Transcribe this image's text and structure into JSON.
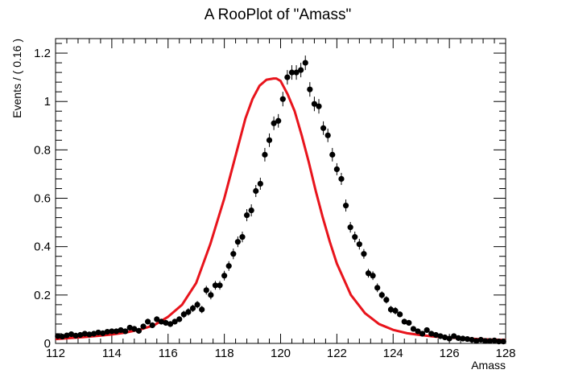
{
  "chart_data": {
    "type": "scatter",
    "title": "A RooPlot of \"Amass\"",
    "xlabel": "Amass",
    "ylabel": "Events / ( 0.16 )",
    "xlim": [
      112,
      128
    ],
    "ylim": [
      0,
      1.26
    ],
    "x_ticks": [
      112,
      114,
      116,
      118,
      120,
      122,
      124,
      126,
      128
    ],
    "x_tick_labels": [
      "112",
      "114",
      "116",
      "118",
      "120",
      "122",
      "124",
      "126",
      "128"
    ],
    "y_ticks": [
      0,
      0.2,
      0.4,
      0.6,
      0.8,
      1,
      1.2
    ],
    "y_tick_labels": [
      "0",
      "0.2",
      "0.4",
      "0.6",
      "0.8",
      "1",
      "1.2"
    ],
    "grid": false,
    "legend": "none",
    "colors": {
      "data": "#000000",
      "fit": "#e8141c"
    },
    "series": [
      {
        "kind": "points-with-errors",
        "x": [
          112.08,
          112.24,
          112.4,
          112.56,
          112.72,
          112.88,
          113.04,
          113.2,
          113.36,
          113.52,
          113.68,
          113.84,
          114.0,
          114.16,
          114.32,
          114.48,
          114.64,
          114.8,
          114.96,
          115.12,
          115.28,
          115.44,
          115.6,
          115.76,
          115.92,
          116.08,
          116.24,
          116.4,
          116.56,
          116.72,
          116.88,
          117.04,
          117.2,
          117.36,
          117.52,
          117.68,
          117.84,
          118.0,
          118.16,
          118.32,
          118.48,
          118.64,
          118.8,
          118.96,
          119.12,
          119.28,
          119.44,
          119.6,
          119.76,
          119.92,
          120.08,
          120.24,
          120.4,
          120.56,
          120.72,
          120.88,
          121.04,
          121.2,
          121.36,
          121.52,
          121.68,
          121.84,
          122.0,
          122.16,
          122.32,
          122.48,
          122.64,
          122.8,
          122.96,
          123.12,
          123.28,
          123.44,
          123.6,
          123.76,
          123.92,
          124.08,
          124.24,
          124.4,
          124.56,
          124.72,
          124.88,
          125.04,
          125.2,
          125.36,
          125.52,
          125.68,
          125.84,
          126.0,
          126.16,
          126.32,
          126.48,
          126.64,
          126.8,
          126.96,
          127.12,
          127.28,
          127.44,
          127.6,
          127.76,
          127.92
        ],
        "y": [
          0.03,
          0.028,
          0.033,
          0.038,
          0.032,
          0.035,
          0.04,
          0.037,
          0.04,
          0.045,
          0.042,
          0.048,
          0.05,
          0.05,
          0.055,
          0.05,
          0.065,
          0.06,
          0.052,
          0.07,
          0.09,
          0.075,
          0.1,
          0.09,
          0.085,
          0.08,
          0.09,
          0.1,
          0.12,
          0.13,
          0.145,
          0.16,
          0.14,
          0.22,
          0.2,
          0.24,
          0.24,
          0.28,
          0.32,
          0.37,
          0.42,
          0.44,
          0.53,
          0.55,
          0.63,
          0.66,
          0.78,
          0.84,
          0.91,
          0.92,
          1.01,
          1.1,
          1.12,
          1.12,
          1.13,
          1.16,
          1.05,
          0.99,
          0.98,
          0.89,
          0.86,
          0.78,
          0.72,
          0.68,
          0.57,
          0.48,
          0.44,
          0.41,
          0.37,
          0.29,
          0.28,
          0.23,
          0.2,
          0.18,
          0.14,
          0.135,
          0.12,
          0.09,
          0.085,
          0.06,
          0.05,
          0.04,
          0.055,
          0.04,
          0.035,
          0.03,
          0.025,
          0.02,
          0.03,
          0.022,
          0.02,
          0.018,
          0.015,
          0.01,
          0.015,
          0.01,
          0.01,
          0.012,
          0.008,
          0.008
        ],
        "yerr": [
          0.01,
          0.01,
          0.01,
          0.01,
          0.01,
          0.01,
          0.01,
          0.01,
          0.01,
          0.01,
          0.01,
          0.01,
          0.01,
          0.01,
          0.01,
          0.01,
          0.012,
          0.012,
          0.012,
          0.012,
          0.012,
          0.012,
          0.012,
          0.012,
          0.012,
          0.012,
          0.012,
          0.012,
          0.015,
          0.015,
          0.015,
          0.015,
          0.015,
          0.018,
          0.018,
          0.018,
          0.018,
          0.02,
          0.02,
          0.022,
          0.022,
          0.022,
          0.025,
          0.025,
          0.025,
          0.025,
          0.028,
          0.028,
          0.028,
          0.028,
          0.03,
          0.03,
          0.03,
          0.03,
          0.03,
          0.03,
          0.03,
          0.03,
          0.03,
          0.028,
          0.028,
          0.028,
          0.025,
          0.025,
          0.025,
          0.022,
          0.022,
          0.022,
          0.02,
          0.018,
          0.018,
          0.018,
          0.015,
          0.015,
          0.015,
          0.015,
          0.012,
          0.012,
          0.012,
          0.01,
          0.01,
          0.01,
          0.01,
          0.01,
          0.01,
          0.01,
          0.01,
          0.01,
          0.01,
          0.01,
          0.01,
          0.01,
          0.01,
          0.008,
          0.008,
          0.008,
          0.008,
          0.008,
          0.008,
          0.008
        ]
      },
      {
        "kind": "fit-curve",
        "x": [
          112.0,
          112.5,
          113.0,
          113.5,
          114.0,
          114.5,
          115.0,
          115.5,
          116.0,
          116.5,
          117.0,
          117.5,
          118.0,
          118.25,
          118.5,
          118.75,
          119.0,
          119.25,
          119.5,
          119.75,
          119.85,
          120.0,
          120.25,
          120.5,
          120.75,
          121.0,
          121.25,
          121.5,
          121.75,
          122.0,
          122.5,
          123.0,
          123.5,
          124.0,
          124.5,
          125.0,
          125.5,
          126.0,
          126.5,
          127.0,
          127.5,
          128.0
        ],
        "y": [
          0.018,
          0.022,
          0.026,
          0.031,
          0.037,
          0.045,
          0.057,
          0.075,
          0.11,
          0.16,
          0.25,
          0.41,
          0.6,
          0.71,
          0.82,
          0.93,
          1.01,
          1.065,
          1.09,
          1.095,
          1.095,
          1.085,
          1.03,
          0.96,
          0.86,
          0.75,
          0.63,
          0.52,
          0.42,
          0.33,
          0.2,
          0.125,
          0.08,
          0.056,
          0.042,
          0.034,
          0.028,
          0.024,
          0.021,
          0.018,
          0.016,
          0.014
        ]
      }
    ]
  }
}
